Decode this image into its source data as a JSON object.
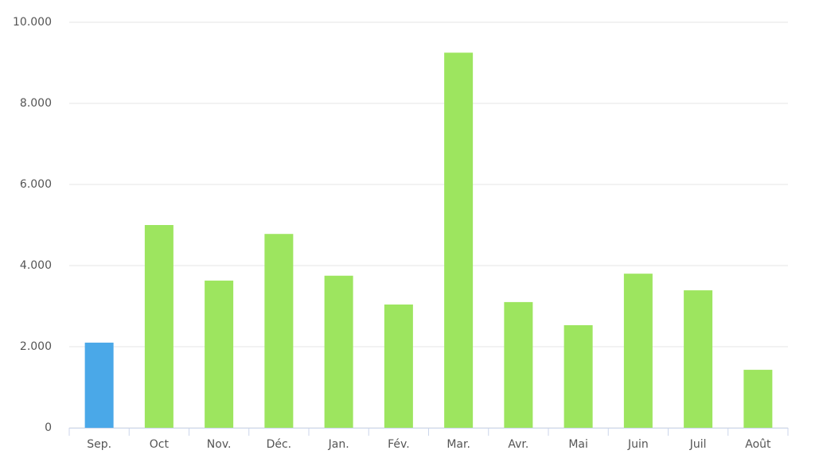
{
  "chart_data": {
    "type": "bar",
    "categories": [
      "Sep.",
      "Oct",
      "Nov.",
      "Déc.",
      "Jan.",
      "Fév.",
      "Mar.",
      "Avr.",
      "Mai",
      "Juin",
      "Juil",
      "Août"
    ],
    "values": [
      2100,
      5000,
      3630,
      4780,
      3750,
      3040,
      9250,
      3100,
      2530,
      3800,
      3390,
      1430
    ],
    "colors": [
      "#4aa8e8",
      "#9de55f",
      "#9de55f",
      "#9de55f",
      "#9de55f",
      "#9de55f",
      "#9de55f",
      "#9de55f",
      "#9de55f",
      "#9de55f",
      "#9de55f",
      "#9de55f"
    ],
    "ylim": [
      0,
      10000
    ],
    "yticks": [
      0,
      {
        "value": 2000,
        "label": "2.000"
      },
      {
        "value": 4000,
        "label": "4.000"
      },
      {
        "value": 6000,
        "label": "6.000"
      },
      {
        "value": 8000,
        "label": "8.000"
      },
      {
        "value": 10000,
        "label": "10.000"
      }
    ],
    "grid": true
  }
}
